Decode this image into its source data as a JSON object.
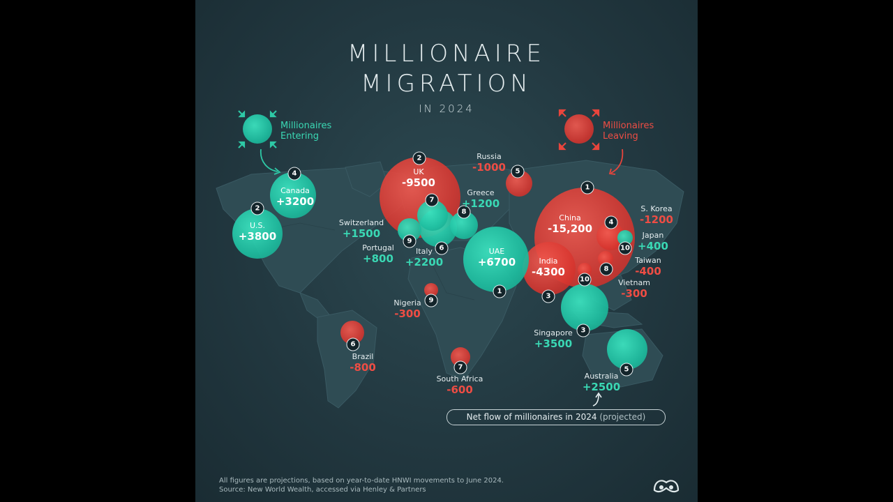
{
  "title": {
    "line1": "MILLIONAIRE",
    "line2": "MIGRATION",
    "line3": "IN 2024"
  },
  "legend": {
    "entering": "Millionaires Entering",
    "leaving": "Millionaires Leaving",
    "entering_color": "#2ec9a6",
    "leaving_color": "#e8453c"
  },
  "net_flow_label": "Net flow of millionaires in 2024",
  "net_flow_projected": "(projected)",
  "footnote": {
    "line1": "All figures are projections, based on year-to-date HNWI movements to June 2024.",
    "line2": "Source: New World Wealth, accessed via Henley & Partners"
  },
  "chart_data": {
    "type": "bubble-map",
    "unit": "net flow of millionaires, 2024 (projected)",
    "entering": [
      {
        "rank": "1",
        "country": "UAE",
        "value": "+6700"
      },
      {
        "rank": "2",
        "country": "U.S.",
        "value": "+3800"
      },
      {
        "rank": "3",
        "country": "Singapore",
        "value": "+3500"
      },
      {
        "rank": "4",
        "country": "Canada",
        "value": "+3200"
      },
      {
        "rank": "5",
        "country": "Australia",
        "value": "+2500"
      },
      {
        "rank": "6",
        "country": "Italy",
        "value": "+2200"
      },
      {
        "rank": "7",
        "country": "Switzerland",
        "value": "+1500"
      },
      {
        "rank": "8",
        "country": "Greece",
        "value": "+1200"
      },
      {
        "rank": "9",
        "country": "Portugal",
        "value": "+800"
      },
      {
        "rank": "10",
        "country": "Japan",
        "value": "+400"
      }
    ],
    "leaving": [
      {
        "rank": "1",
        "country": "China",
        "value": "-15,200"
      },
      {
        "rank": "2",
        "country": "UK",
        "value": "-9500"
      },
      {
        "rank": "3",
        "country": "India",
        "value": "-4300"
      },
      {
        "rank": "4",
        "country": "S. Korea",
        "value": "-1200"
      },
      {
        "rank": "5",
        "country": "Russia",
        "value": "-1000"
      },
      {
        "rank": "6",
        "country": "Brazil",
        "value": "-800"
      },
      {
        "rank": "7",
        "country": "South Africa",
        "value": "-600"
      },
      {
        "rank": "8",
        "country": "Taiwan",
        "value": "-400"
      },
      {
        "rank": "9",
        "country": "Nigeria",
        "value": "-300"
      },
      {
        "rank": "10",
        "country": "Vietnam",
        "value": "-300"
      }
    ]
  }
}
